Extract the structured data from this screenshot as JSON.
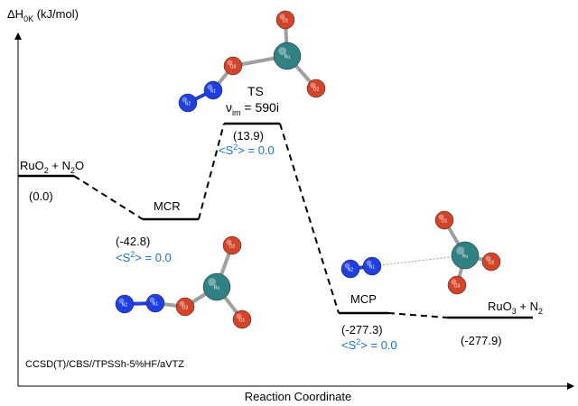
{
  "y_axis_label": [
    "ΔH",
    "0K",
    " (kJ/mol)"
  ],
  "x_axis_label": "Reaction Coordinate",
  "method": "CCSD(T)/CBS//TPSSh-5%HF/aVTZ",
  "reactant": {
    "label": [
      "RuO",
      "2",
      " + N",
      "2",
      "O"
    ],
    "energy": "(0.0)"
  },
  "mcr": {
    "label": "MCR",
    "energy": "(-42.8)",
    "spin": [
      "<S",
      "2",
      "> = 0.0"
    ]
  },
  "ts": {
    "label": "TS",
    "frequency": [
      "ν",
      "im",
      " = 590i"
    ],
    "energy": "(13.9)",
    "spin": [
      "<S",
      "2",
      "> = 0.0"
    ]
  },
  "mcp": {
    "label": "MCP",
    "energy": "(-277.3)",
    "spin": [
      "<S",
      "2",
      "> = 0.0"
    ]
  },
  "product": {
    "label": [
      "RuO",
      "3",
      " + N",
      "2"
    ],
    "energy": "(-277.9)"
  },
  "molecules": [
    {
      "atoms": [
        "O1",
        "Ru",
        "O2",
        "O3",
        "N1",
        "N2"
      ]
    },
    {
      "atoms": [
        "O2",
        "Ru",
        "O1",
        "O3",
        "N1",
        "N2"
      ]
    },
    {
      "atoms": [
        "O1",
        "Ru",
        "O2",
        "O3",
        "N1",
        "N2"
      ]
    }
  ]
}
